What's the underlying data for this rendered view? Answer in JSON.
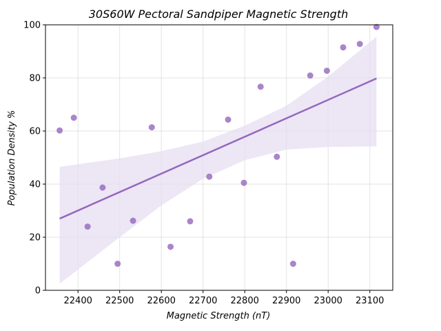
{
  "chart_data": {
    "type": "scatter",
    "title": "30S60W Pectoral Sandpiper Magnetic Strength",
    "xlabel": "Magnetic Strength (nT)",
    "ylabel": "Population Density %",
    "xlim": [
      22322,
      23155
    ],
    "ylim": [
      0,
      100
    ],
    "xticks": [
      22400,
      22500,
      22600,
      22700,
      22800,
      22900,
      23000,
      23100
    ],
    "yticks": [
      0,
      20,
      40,
      60,
      80,
      100
    ],
    "grid": true,
    "points": [
      {
        "x": 22356,
        "y": 60.2
      },
      {
        "x": 22390,
        "y": 65.0
      },
      {
        "x": 22423,
        "y": 24.0
      },
      {
        "x": 22459,
        "y": 38.7
      },
      {
        "x": 22495,
        "y": 10.0
      },
      {
        "x": 22532,
        "y": 26.2
      },
      {
        "x": 22577,
        "y": 61.4
      },
      {
        "x": 22622,
        "y": 16.4
      },
      {
        "x": 22669,
        "y": 26.0
      },
      {
        "x": 22715,
        "y": 42.8
      },
      {
        "x": 22760,
        "y": 64.3
      },
      {
        "x": 22798,
        "y": 40.5
      },
      {
        "x": 22838,
        "y": 76.7
      },
      {
        "x": 22877,
        "y": 50.3
      },
      {
        "x": 22916,
        "y": 10.0
      },
      {
        "x": 22957,
        "y": 80.9
      },
      {
        "x": 22997,
        "y": 82.7
      },
      {
        "x": 23036,
        "y": 91.5
      },
      {
        "x": 23076,
        "y": 92.8
      },
      {
        "x": 23116,
        "y": 99.2
      }
    ],
    "regression": {
      "x": [
        22356,
        23116
      ],
      "y": [
        27.0,
        79.8
      ]
    },
    "confidence_band": {
      "x": [
        22356,
        22500,
        22600,
        22700,
        22800,
        22900,
        23000,
        23116
      ],
      "upper": [
        46.5,
        49.7,
        52.4,
        56.0,
        62.0,
        69.5,
        80.5,
        95.5
      ],
      "lower": [
        2.5,
        20.0,
        32.0,
        42.0,
        49.0,
        53.0,
        54.0,
        54.2
      ]
    },
    "colors": {
      "point": "#9467bd",
      "line": "#9467bd",
      "band": "#e6ddf2"
    }
  }
}
